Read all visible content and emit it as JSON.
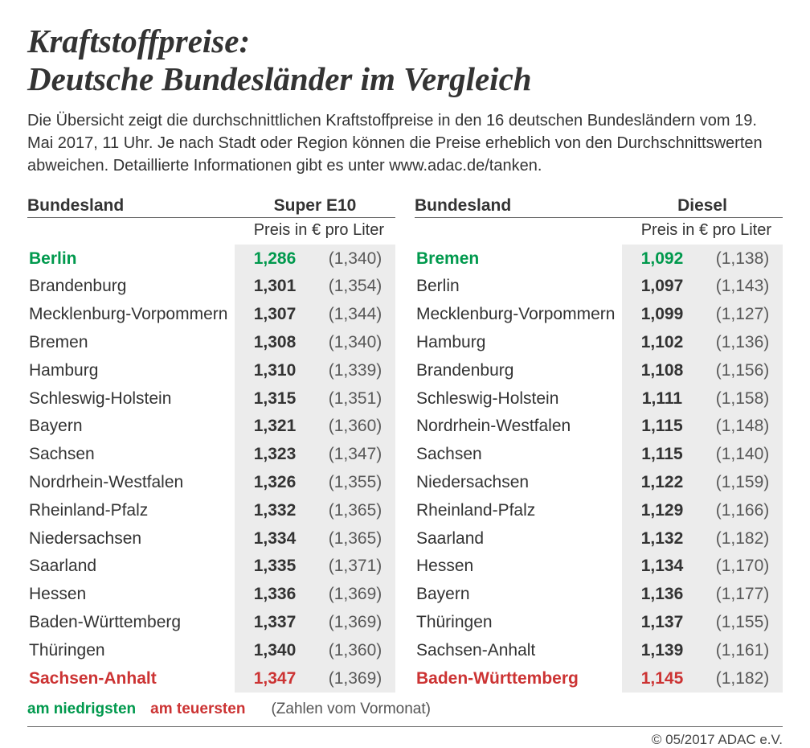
{
  "title_line1": "Kraftstoffpreise:",
  "title_line2": "Deutsche Bundesländer im Vergleich",
  "subtitle": "Die Übersicht zeigt die durchschnittlichen Kraftstoffpreise in den 16 deutschen Bundesländern vom 19. Mai 2017, 11 Uhr. Je nach Stadt oder Region können die Preise erheblich von den Durchschnittswerten abweichen. Detaillierte Informationen gibt es unter www.adac.de/tanken.",
  "col_state_label": "Bundesland",
  "price_unit_label": "Preis in € pro Liter",
  "legend_low": "am niedrigsten",
  "legend_high": "am teuersten",
  "legend_note": "(Zahlen vom Vormonat)",
  "copyright": "© 05/2017 ADAC e.V.",
  "colors": {
    "low": "#00994d",
    "high": "#cc3333",
    "text": "#333333",
    "shade": "#ececec"
  },
  "left": {
    "fuel_label": "Super E10",
    "rows": [
      {
        "state": "Berlin",
        "price": "1,286",
        "prev": "(1,340)",
        "flag": "low"
      },
      {
        "state": "Brandenburg",
        "price": "1,301",
        "prev": "(1,354)"
      },
      {
        "state": "Mecklenburg-Vorpommern",
        "price": "1,307",
        "prev": "(1,344)"
      },
      {
        "state": "Bremen",
        "price": "1,308",
        "prev": "(1,340)"
      },
      {
        "state": "Hamburg",
        "price": "1,310",
        "prev": "(1,339)"
      },
      {
        "state": "Schleswig-Holstein",
        "price": "1,315",
        "prev": "(1,351)"
      },
      {
        "state": "Bayern",
        "price": "1,321",
        "prev": "(1,360)"
      },
      {
        "state": "Sachsen",
        "price": "1,323",
        "prev": "(1,347)"
      },
      {
        "state": "Nordrhein-Westfalen",
        "price": "1,326",
        "prev": "(1,355)"
      },
      {
        "state": "Rheinland-Pfalz",
        "price": "1,332",
        "prev": "(1,365)"
      },
      {
        "state": "Niedersachsen",
        "price": "1,334",
        "prev": "(1,365)"
      },
      {
        "state": "Saarland",
        "price": "1,335",
        "prev": "(1,371)"
      },
      {
        "state": "Hessen",
        "price": "1,336",
        "prev": "(1,369)"
      },
      {
        "state": "Baden-Württemberg",
        "price": "1,337",
        "prev": "(1,369)"
      },
      {
        "state": "Thüringen",
        "price": "1,340",
        "prev": "(1,360)"
      },
      {
        "state": "Sachsen-Anhalt",
        "price": "1,347",
        "prev": "(1,369)",
        "flag": "high"
      }
    ]
  },
  "right": {
    "fuel_label": "Diesel",
    "rows": [
      {
        "state": "Bremen",
        "price": "1,092",
        "prev": "(1,138)",
        "flag": "low"
      },
      {
        "state": "Berlin",
        "price": "1,097",
        "prev": "(1,143)"
      },
      {
        "state": "Mecklenburg-Vorpommern",
        "price": "1,099",
        "prev": "(1,127)"
      },
      {
        "state": "Hamburg",
        "price": "1,102",
        "prev": "(1,136)"
      },
      {
        "state": "Brandenburg",
        "price": "1,108",
        "prev": "(1,156)"
      },
      {
        "state": "Schleswig-Holstein",
        "price": "1,111",
        "prev": "(1,158)"
      },
      {
        "state": "Nordrhein-Westfalen",
        "price": "1,115",
        "prev": "(1,148)"
      },
      {
        "state": "Sachsen",
        "price": "1,115",
        "prev": "(1,140)"
      },
      {
        "state": "Niedersachsen",
        "price": "1,122",
        "prev": "(1,159)"
      },
      {
        "state": "Rheinland-Pfalz",
        "price": "1,129",
        "prev": "(1,166)"
      },
      {
        "state": "Saarland",
        "price": "1,132",
        "prev": "(1,182)"
      },
      {
        "state": "Hessen",
        "price": "1,134",
        "prev": "(1,170)"
      },
      {
        "state": "Bayern",
        "price": "1,136",
        "prev": "(1,177)"
      },
      {
        "state": "Thüringen",
        "price": "1,137",
        "prev": "(1,155)"
      },
      {
        "state": "Sachsen-Anhalt",
        "price": "1,139",
        "prev": "(1,161)"
      },
      {
        "state": "Baden-Württemberg",
        "price": "1,145",
        "prev": "(1,182)",
        "flag": "high"
      }
    ]
  }
}
